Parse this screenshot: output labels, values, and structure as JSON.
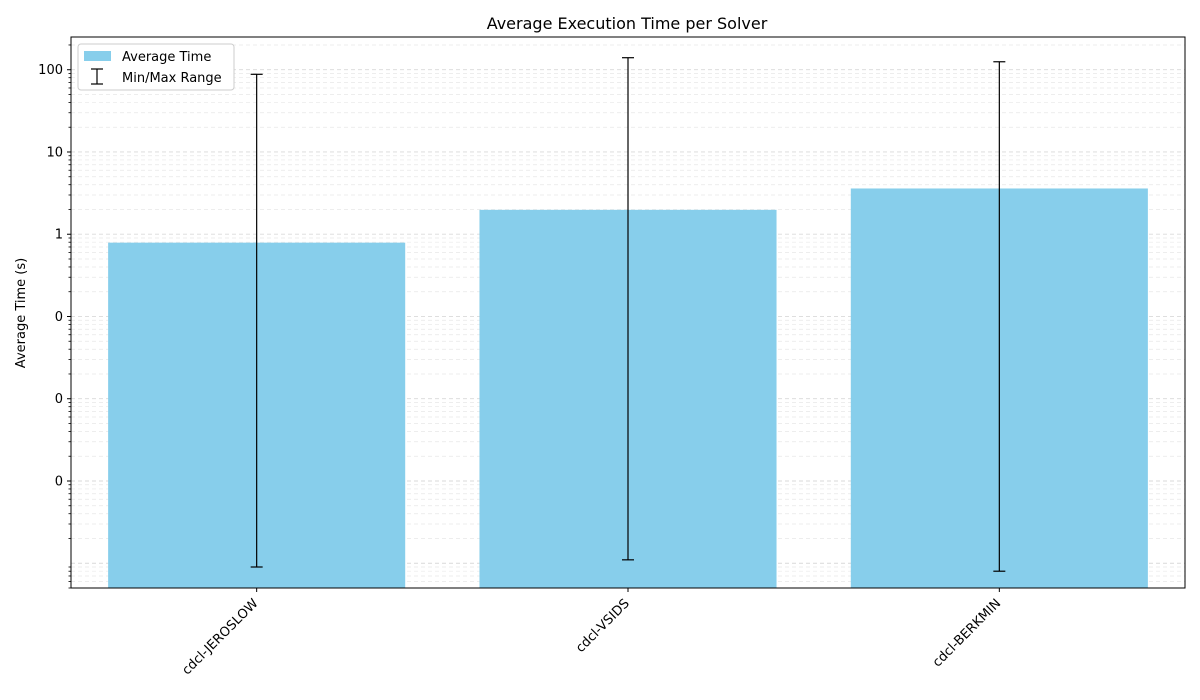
{
  "chart_data": {
    "type": "bar",
    "title": "Average Execution Time per Solver",
    "xlabel": "",
    "ylabel": "Average Time (s)",
    "yscale": "log",
    "ylim": [
      5e-05,
      250
    ],
    "categories": [
      "cdcl-JEROSLOW",
      "cdcl-VSIDS",
      "cdcl-BERKMIN"
    ],
    "series": [
      {
        "name": "Average Time",
        "values": [
          0.79,
          1.98,
          3.6
        ],
        "color": "#87CEEB"
      }
    ],
    "error_range": {
      "name": "Min/Max Range",
      "min": [
        9e-05,
        0.00011,
        8e-05
      ],
      "max": [
        88,
        140,
        125
      ],
      "color": "#000000"
    },
    "y_ticks": [
      {
        "value": 0.001,
        "label": "0"
      },
      {
        "value": 0.01,
        "label": "0"
      },
      {
        "value": 0.1,
        "label": "0"
      },
      {
        "value": 1,
        "label": "1"
      },
      {
        "value": 10,
        "label": "10"
      },
      {
        "value": 100,
        "label": "100"
      }
    ],
    "grid": true,
    "legend_position": "top-left"
  }
}
